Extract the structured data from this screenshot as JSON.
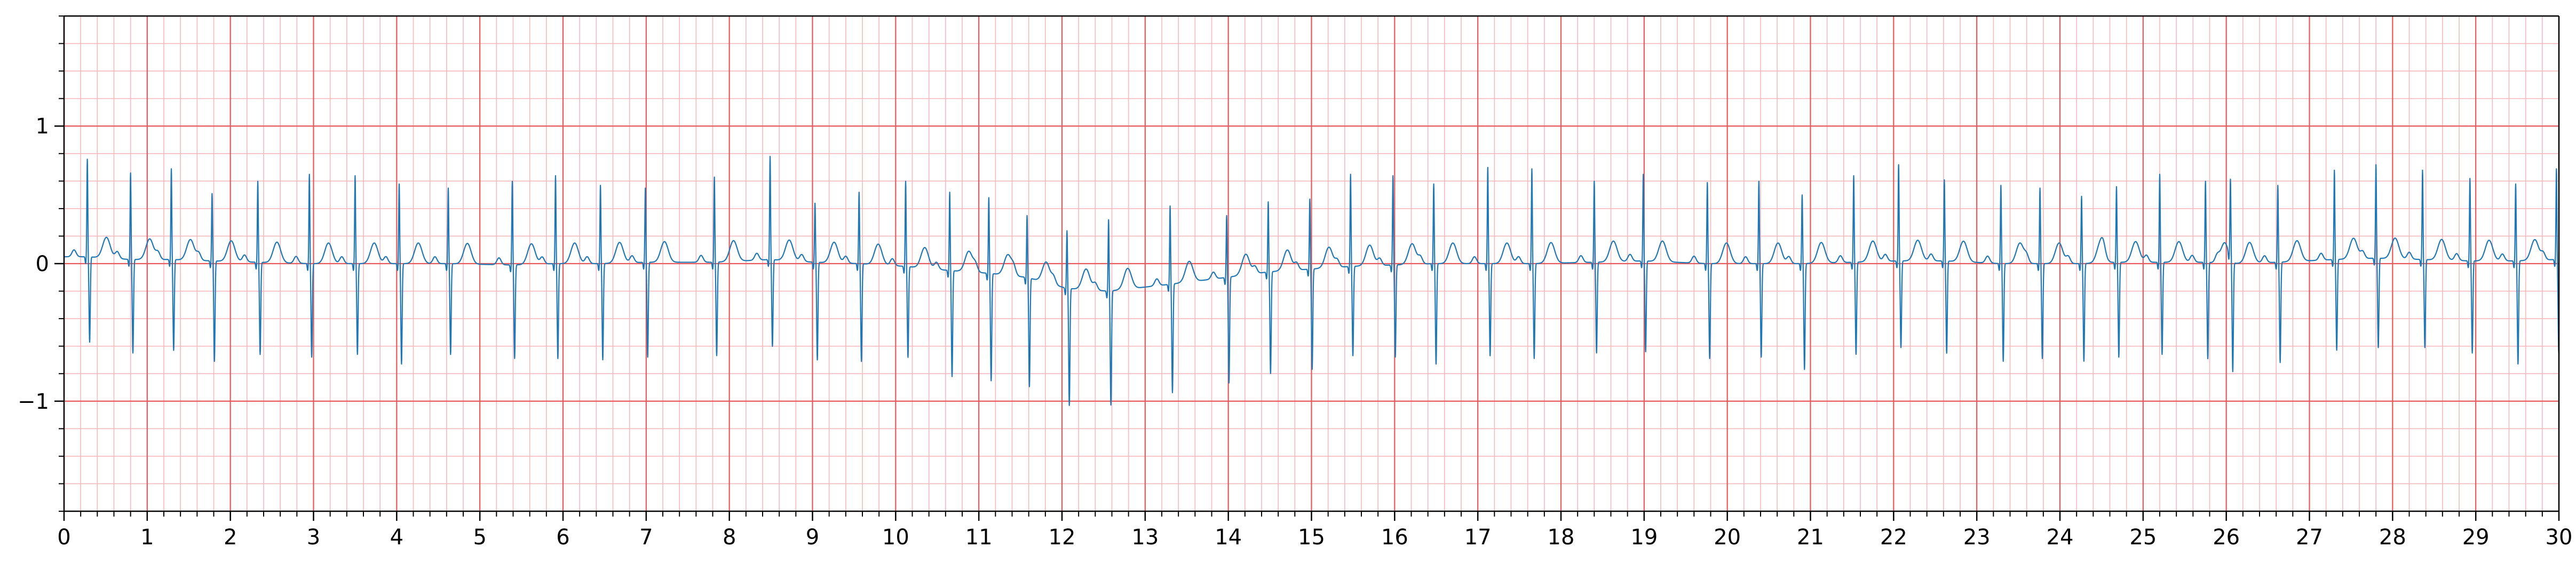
{
  "chart_data": {
    "type": "line",
    "title": "",
    "xlabel": "",
    "ylabel": "",
    "xlim": [
      0,
      30
    ],
    "ylim": [
      -1.8,
      1.8
    ],
    "grid": {
      "major": true,
      "minor": true,
      "major_x_step": 1,
      "major_y_step": 1,
      "minor_x_step": 0.2,
      "minor_y_step": 0.2
    },
    "x_ticks": [
      0,
      1,
      2,
      3,
      4,
      5,
      6,
      7,
      8,
      9,
      10,
      11,
      12,
      13,
      14,
      15,
      16,
      17,
      18,
      19,
      20,
      21,
      22,
      23,
      24,
      25,
      26,
      27,
      28,
      29,
      30
    ],
    "x_tick_labels": [
      "0",
      "1",
      "2",
      "3",
      "4",
      "5",
      "6",
      "7",
      "8",
      "9",
      "10",
      "11",
      "12",
      "13",
      "14",
      "15",
      "16",
      "17",
      "18",
      "19",
      "20",
      "21",
      "22",
      "23",
      "24",
      "25",
      "26",
      "27",
      "28",
      "29",
      "30"
    ],
    "y_ticks": [
      -1,
      0,
      1
    ],
    "y_tick_labels": [
      "−1",
      "0",
      "1"
    ],
    "colors": {
      "signal": "#1f77b4",
      "grid_major": "#e8595c",
      "grid_minor": "#f7b9bd",
      "axis": "#000000"
    },
    "series": [
      {
        "beats": [
          {
            "t": 0.28,
            "r": 0.71,
            "s": -0.62,
            "base": 0.05
          },
          {
            "t": 0.8,
            "r": 0.63,
            "s": -0.68,
            "base": 0.03
          },
          {
            "t": 1.29,
            "r": 0.66,
            "s": -0.66,
            "base": 0.03
          },
          {
            "t": 1.78,
            "r": 0.49,
            "s": -0.73,
            "base": 0.02
          },
          {
            "t": 2.33,
            "r": 0.59,
            "s": -0.67,
            "base": 0.01
          },
          {
            "t": 2.95,
            "r": 0.65,
            "s": -0.68,
            "base": 0.0
          },
          {
            "t": 3.5,
            "r": 0.64,
            "s": -0.66,
            "base": 0.0
          },
          {
            "t": 4.03,
            "r": 0.58,
            "s": -0.73,
            "base": 0.0
          },
          {
            "t": 4.62,
            "r": 0.55,
            "s": -0.66,
            "base": 0.0
          },
          {
            "t": 5.39,
            "r": 0.61,
            "s": -0.68,
            "base": -0.01
          },
          {
            "t": 5.91,
            "r": 0.64,
            "s": -0.69,
            "base": 0.0
          },
          {
            "t": 6.45,
            "r": 0.57,
            "s": -0.7,
            "base": 0.0
          },
          {
            "t": 6.99,
            "r": 0.54,
            "s": -0.69,
            "base": 0.01
          },
          {
            "t": 7.82,
            "r": 0.62,
            "s": -0.68,
            "base": 0.01
          },
          {
            "t": 8.49,
            "r": 0.75,
            "s": -0.63,
            "base": 0.03
          },
          {
            "t": 9.03,
            "r": 0.43,
            "s": -0.71,
            "base": 0.01
          },
          {
            "t": 9.56,
            "r": 0.52,
            "s": -0.71,
            "base": 0.0
          },
          {
            "t": 10.12,
            "r": 0.62,
            "s": -0.66,
            "base": -0.02
          },
          {
            "t": 10.65,
            "r": 0.57,
            "s": -0.77,
            "base": -0.05
          },
          {
            "t": 11.12,
            "r": 0.55,
            "s": -0.78,
            "base": -0.07
          },
          {
            "t": 11.58,
            "r": 0.45,
            "s": -0.79,
            "base": -0.1
          },
          {
            "t": 12.06,
            "r": 0.42,
            "s": -0.85,
            "base": -0.18
          },
          {
            "t": 12.56,
            "r": 0.52,
            "s": -0.83,
            "base": -0.2
          },
          {
            "t": 13.3,
            "r": 0.57,
            "s": -0.79,
            "base": -0.15
          },
          {
            "t": 13.98,
            "r": 0.45,
            "s": -0.77,
            "base": -0.1
          },
          {
            "t": 14.48,
            "r": 0.51,
            "s": -0.74,
            "base": -0.06
          },
          {
            "t": 14.98,
            "r": 0.51,
            "s": -0.73,
            "base": -0.04
          },
          {
            "t": 15.47,
            "r": 0.67,
            "s": -0.65,
            "base": -0.02
          },
          {
            "t": 15.98,
            "r": 0.65,
            "s": -0.67,
            "base": -0.01
          },
          {
            "t": 16.47,
            "r": 0.58,
            "s": -0.73,
            "base": 0.0
          },
          {
            "t": 17.12,
            "r": 0.7,
            "s": -0.67,
            "base": 0.0
          },
          {
            "t": 17.65,
            "r": 0.69,
            "s": -0.69,
            "base": 0.0
          },
          {
            "t": 18.4,
            "r": 0.59,
            "s": -0.66,
            "base": 0.01
          },
          {
            "t": 18.99,
            "r": 0.63,
            "s": -0.66,
            "base": 0.02
          },
          {
            "t": 19.76,
            "r": 0.59,
            "s": -0.69,
            "base": 0.0
          },
          {
            "t": 20.38,
            "r": 0.6,
            "s": -0.68,
            "base": 0.0
          },
          {
            "t": 20.9,
            "r": 0.5,
            "s": -0.77,
            "base": 0.0
          },
          {
            "t": 21.52,
            "r": 0.63,
            "s": -0.67,
            "base": 0.01
          },
          {
            "t": 22.06,
            "r": 0.7,
            "s": -0.63,
            "base": 0.02
          },
          {
            "t": 22.61,
            "r": 0.59,
            "s": -0.67,
            "base": 0.02
          },
          {
            "t": 23.29,
            "r": 0.57,
            "s": -0.71,
            "base": 0.0
          },
          {
            "t": 23.76,
            "r": 0.55,
            "s": -0.69,
            "base": 0.0
          },
          {
            "t": 24.26,
            "r": 0.49,
            "s": -0.71,
            "base": 0.0
          },
          {
            "t": 24.68,
            "r": 0.55,
            "s": -0.69,
            "base": 0.01
          },
          {
            "t": 25.2,
            "r": 0.64,
            "s": -0.67,
            "base": 0.01
          },
          {
            "t": 25.75,
            "r": 0.59,
            "s": -0.7,
            "base": 0.01
          },
          {
            "t": 26.05,
            "r": 0.57,
            "s": -0.8,
            "base": 0.0
          },
          {
            "t": 26.62,
            "r": 0.56,
            "s": -0.73,
            "base": 0.01
          },
          {
            "t": 27.3,
            "r": 0.65,
            "s": -0.66,
            "base": 0.03
          },
          {
            "t": 27.8,
            "r": 0.68,
            "s": -0.65,
            "base": 0.04
          },
          {
            "t": 28.36,
            "r": 0.65,
            "s": -0.64,
            "base": 0.03
          },
          {
            "t": 28.93,
            "r": 0.6,
            "s": -0.67,
            "base": 0.02
          },
          {
            "t": 29.48,
            "r": 0.56,
            "s": -0.75,
            "base": 0.02
          },
          {
            "t": 29.97,
            "r": 0.66,
            "s": -0.68,
            "base": 0.03
          }
        ]
      }
    ]
  }
}
